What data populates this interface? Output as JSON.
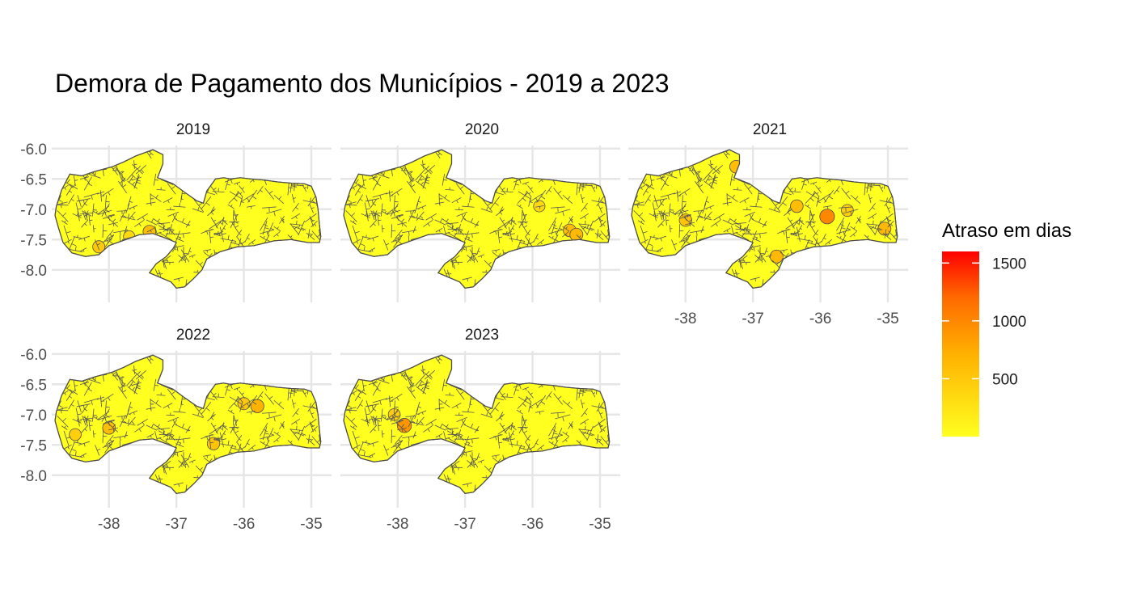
{
  "chart_data": {
    "type": "choropleth-facet",
    "title": "Demora de Pagamento dos Municípios - 2019 a 2023",
    "xlabel": "",
    "ylabel": "",
    "x_ticks": [
      -38,
      -37,
      -36,
      -35
    ],
    "x_tick_labels": [
      "-38",
      "-37",
      "-36",
      "-35"
    ],
    "y_ticks": [
      -6.0,
      -6.5,
      -7.0,
      -7.5,
      -8.0
    ],
    "y_tick_labels": [
      "-6.0",
      "-6.5",
      "-7.0",
      "-7.5",
      "-8.0"
    ],
    "xlim": [
      -38.8,
      -34.7
    ],
    "ylim": [
      -8.35,
      -5.95
    ],
    "grid": true,
    "legend": {
      "title": "Atraso em dias",
      "position": "right",
      "breaks": [
        500,
        1000,
        1500
      ],
      "break_labels": [
        "500",
        "1000",
        "1500"
      ],
      "range": [
        0,
        1600
      ],
      "low_color": "#ffff20",
      "high_color": "#ff0000"
    },
    "panels": [
      {
        "label": "2019",
        "highlights": [
          {
            "lon": -37.4,
            "lat": -7.37,
            "value": 600
          },
          {
            "lon": -38.15,
            "lat": -7.62,
            "value": 500
          },
          {
            "lon": -37.7,
            "lat": -7.45,
            "value": 350
          }
        ]
      },
      {
        "label": "2020",
        "highlights": [
          {
            "lon": -35.45,
            "lat": -7.35,
            "value": 600
          },
          {
            "lon": -35.35,
            "lat": -7.42,
            "value": 650
          },
          {
            "lon": -35.9,
            "lat": -6.95,
            "value": 350
          }
        ]
      },
      {
        "label": "2021",
        "highlights": [
          {
            "lon": -37.25,
            "lat": -6.3,
            "value": 600
          },
          {
            "lon": -36.35,
            "lat": -6.95,
            "value": 600
          },
          {
            "lon": -36.65,
            "lat": -7.78,
            "value": 650
          },
          {
            "lon": -35.05,
            "lat": -7.32,
            "value": 650
          },
          {
            "lon": -35.9,
            "lat": -7.12,
            "value": 1000
          },
          {
            "lon": -38.0,
            "lat": -7.18,
            "value": 550
          },
          {
            "lon": -35.6,
            "lat": -7.02,
            "value": 450
          }
        ]
      },
      {
        "label": "2022",
        "highlights": [
          {
            "lon": -38.0,
            "lat": -7.22,
            "value": 600
          },
          {
            "lon": -36.45,
            "lat": -7.48,
            "value": 550
          },
          {
            "lon": -36.0,
            "lat": -6.82,
            "value": 500
          },
          {
            "lon": -35.8,
            "lat": -6.86,
            "value": 700
          },
          {
            "lon": -38.5,
            "lat": -7.33,
            "value": 450
          }
        ]
      },
      {
        "label": "2023",
        "highlights": [
          {
            "lon": -37.9,
            "lat": -7.18,
            "value": 900
          },
          {
            "lon": -38.05,
            "lat": -7.0,
            "value": 450
          }
        ]
      }
    ]
  }
}
